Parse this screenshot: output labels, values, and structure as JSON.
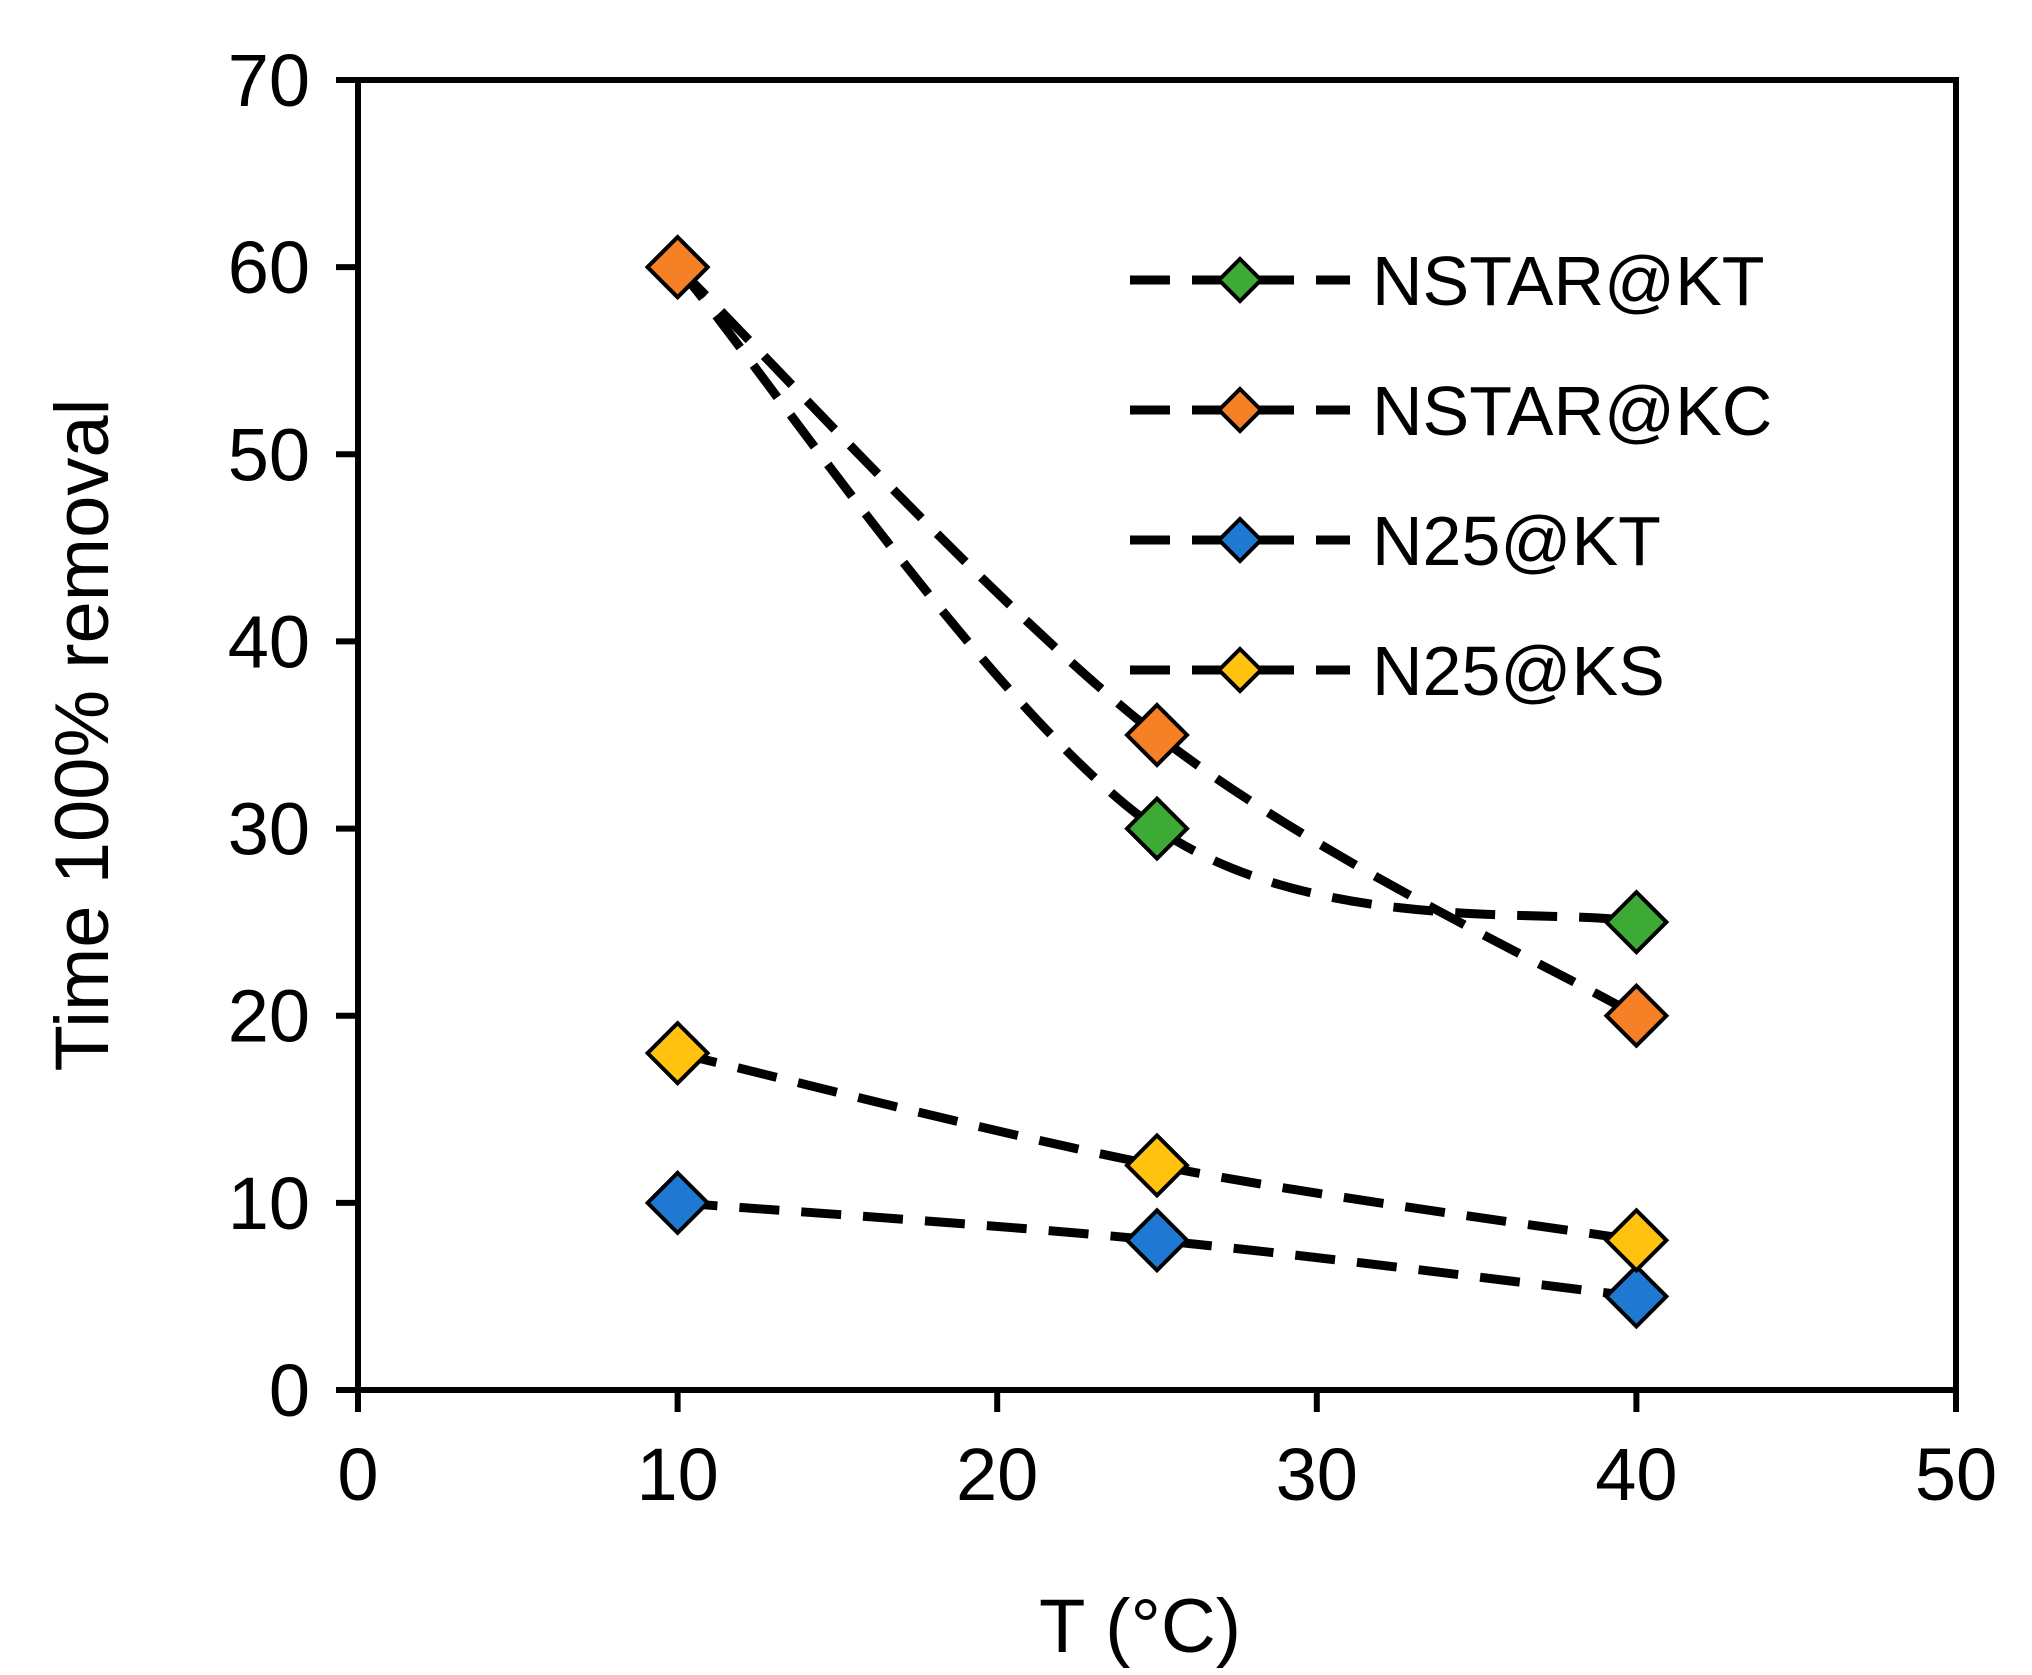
{
  "chart_data": {
    "type": "scatter",
    "title": "",
    "xlabel": "T (°C)",
    "ylabel": "Time 100% removal",
    "xlim": [
      0,
      50
    ],
    "ylim": [
      0,
      70
    ],
    "xticks": [
      0,
      10,
      20,
      30,
      40,
      50
    ],
    "yticks": [
      0,
      10,
      20,
      30,
      40,
      50,
      60,
      70
    ],
    "grid": false,
    "legend_position": "top-right",
    "trendline": "dashed",
    "series": [
      {
        "name": "NSTAR@KT",
        "color": "#3DAA35",
        "x": [
          10,
          25,
          40
        ],
        "y": [
          60,
          30,
          25
        ]
      },
      {
        "name": "NSTAR@KC",
        "color": "#F58025",
        "x": [
          10,
          25,
          40
        ],
        "y": [
          60,
          35,
          20
        ]
      },
      {
        "name": "N25@KT",
        "color": "#1F78D1",
        "x": [
          10,
          25,
          40
        ],
        "y": [
          10,
          8,
          5
        ]
      },
      {
        "name": "N25@KS",
        "color": "#FFC20E",
        "x": [
          10,
          25,
          40
        ],
        "y": [
          18,
          12,
          8
        ]
      }
    ]
  }
}
